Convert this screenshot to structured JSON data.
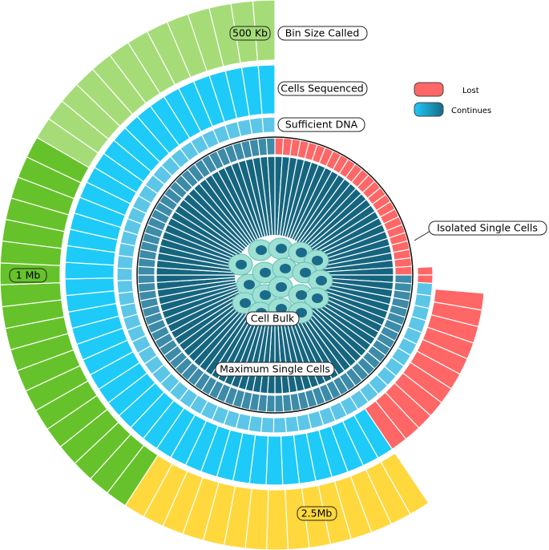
{
  "labels": {
    "bin_size_value": "500 Kb",
    "bin_size": "Bin Size Called",
    "cells_sequenced": "Cells Sequenced",
    "sufficient_dna": "Sufficient DNA",
    "isolated_single_cells": "Isolated Single Cells",
    "cell_bulk": "Cell Bulk",
    "maximum_single_cells": "Maximum Single Cells",
    "one_mb": "1 Mb",
    "two_five_mb": "2.5Mb"
  },
  "legend": [
    {
      "label": "Lost"
    },
    {
      "label": "Continues"
    }
  ]
}
